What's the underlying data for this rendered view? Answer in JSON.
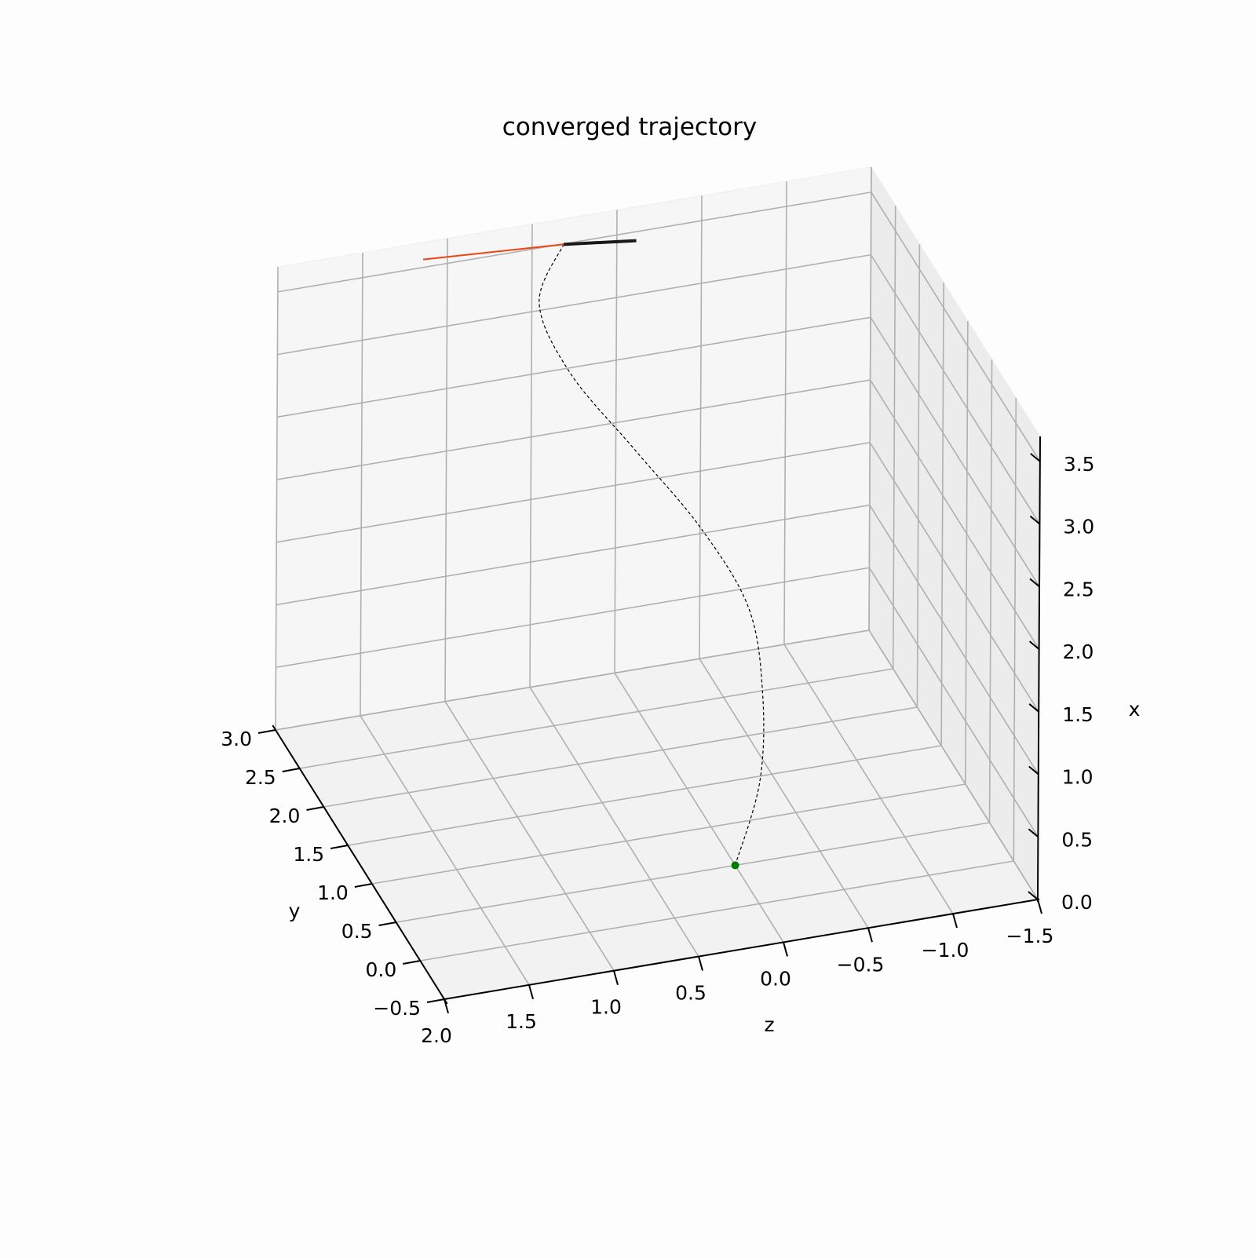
{
  "chart_data": {
    "type": "line3d",
    "title": "converged trajectory",
    "axes": {
      "x": {
        "label": "x",
        "range": [
          0.0,
          3.7
        ],
        "ticks": [
          "0.0",
          "0.5",
          "1.0",
          "1.5",
          "2.0",
          "2.5",
          "3.0",
          "3.5"
        ]
      },
      "y": {
        "label": "y",
        "range": [
          -0.5,
          3.0
        ],
        "ticks": [
          "−0.5",
          "0.0",
          "0.5",
          "1.0",
          "1.5",
          "2.0",
          "2.5",
          "3.0"
        ]
      },
      "z": {
        "label": "z",
        "range": [
          -1.5,
          2.0
        ],
        "ticks": [
          "2.0",
          "1.5",
          "1.0",
          "0.5",
          "0.0",
          "−0.5",
          "−1.0",
          "−1.5"
        ]
      }
    },
    "grid": true,
    "series": [
      {
        "style": "dashed",
        "color": "#000000",
        "points": [
          {
            "x": 0.0,
            "y": 0.5,
            "z": 0.0
          },
          {
            "x": 0.5,
            "y": 0.7,
            "z": -0.2
          },
          {
            "x": 1.0,
            "y": 1.0,
            "z": -0.3
          },
          {
            "x": 1.5,
            "y": 1.3,
            "z": -0.3
          },
          {
            "x": 2.0,
            "y": 1.6,
            "z": -0.1
          },
          {
            "x": 2.5,
            "y": 1.9,
            "z": 0.2
          },
          {
            "x": 3.0,
            "y": 2.2,
            "z": 0.5
          },
          {
            "x": 3.4,
            "y": 2.5,
            "z": 0.6
          },
          {
            "x": 3.7,
            "y": 2.7,
            "z": 0.4
          }
        ]
      }
    ],
    "markers": [
      {
        "kind": "start-point",
        "color": "#007a00",
        "point": {
          "x": 0.0,
          "y": 0.5,
          "z": 0.0
        }
      }
    ],
    "segments": [
      {
        "kind": "orange-segment",
        "color": "#ee4411",
        "from": {
          "x": 3.7,
          "y": 2.7,
          "z": 0.4
        },
        "to": {
          "x": 3.7,
          "y": 2.8,
          "z": 1.2
        }
      },
      {
        "kind": "black-segment",
        "color": "#1a1a1a",
        "from": {
          "x": 3.7,
          "y": 2.7,
          "z": 0.4
        },
        "to": {
          "x": 3.7,
          "y": 2.6,
          "z": 0.0
        }
      }
    ]
  }
}
